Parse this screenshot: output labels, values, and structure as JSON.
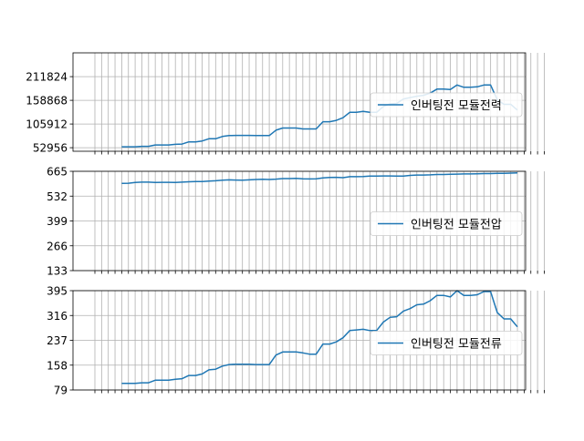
{
  "chart_data": [
    {
      "type": "line",
      "title": "",
      "xlabel": "",
      "ylabel": "",
      "yticks": [
        52956,
        105912,
        158868,
        211824
      ],
      "ylim": [
        45000,
        265000
      ],
      "grid": true,
      "legend_position": "center-right",
      "color": "#1f77b4",
      "series": [
        {
          "name": "인버팅전 모듈전력",
          "values": [
            55000,
            55000,
            55000,
            56000,
            56000,
            59000,
            59000,
            59000,
            60500,
            61000,
            66000,
            66000,
            68000,
            73000,
            73000,
            78000,
            80000,
            80500,
            80500,
            80500,
            80000,
            80000,
            80000,
            92000,
            97000,
            97000,
            97000,
            95000,
            95000,
            95000,
            111000,
            111000,
            114000,
            120000,
            132000,
            132000,
            134000,
            132000,
            132000,
            145000,
            151000,
            152000,
            162000,
            165000,
            168000,
            170000,
            175000,
            184000,
            184000,
            183000,
            193000,
            188000,
            188000,
            189000,
            193000,
            193000,
            160000,
            150000,
            150000,
            137000
          ]
        }
      ]
    },
    {
      "type": "line",
      "title": "",
      "xlabel": "",
      "ylabel": "",
      "yticks": [
        133,
        266,
        399,
        532,
        665
      ],
      "ylim": [
        133,
        665
      ],
      "grid": true,
      "legend_position": "center-right",
      "color": "#1f77b4",
      "series": [
        {
          "name": "인버팅전 모듈전압",
          "values": [
            600,
            601,
            605,
            607,
            607,
            605,
            606,
            606,
            605,
            607,
            609,
            610,
            610,
            613,
            614,
            617,
            619,
            618,
            617,
            619,
            621,
            622,
            621,
            623,
            626,
            626,
            627,
            625,
            624,
            625,
            630,
            632,
            633,
            631,
            636,
            636,
            637,
            639,
            639,
            640,
            640,
            639,
            639,
            643,
            645,
            645,
            646,
            648,
            648,
            649,
            650,
            651,
            651,
            652,
            653,
            653,
            654,
            654,
            655,
            656
          ]
        }
      ]
    },
    {
      "type": "line",
      "title": "",
      "xlabel": "",
      "ylabel": "",
      "yticks": [
        79,
        158,
        237,
        316,
        395
      ],
      "ylim": [
        79,
        395
      ],
      "grid": true,
      "legend_position": "center-right",
      "color": "#1f77b4",
      "series": [
        {
          "name": "인버팅전 모듈전류",
          "values": [
            100,
            100,
            100,
            102,
            102,
            110,
            110,
            110,
            113,
            115,
            125,
            125,
            130,
            143,
            145,
            155,
            160,
            161,
            161,
            161,
            160,
            160,
            160,
            190,
            200,
            200,
            200,
            197,
            193,
            193,
            225,
            225,
            232,
            245,
            268,
            270,
            272,
            268,
            268,
            295,
            310,
            312,
            330,
            338,
            350,
            352,
            363,
            380,
            380,
            375,
            395,
            380,
            380,
            382,
            392,
            392,
            325,
            305,
            305,
            280
          ]
        }
      ]
    }
  ]
}
